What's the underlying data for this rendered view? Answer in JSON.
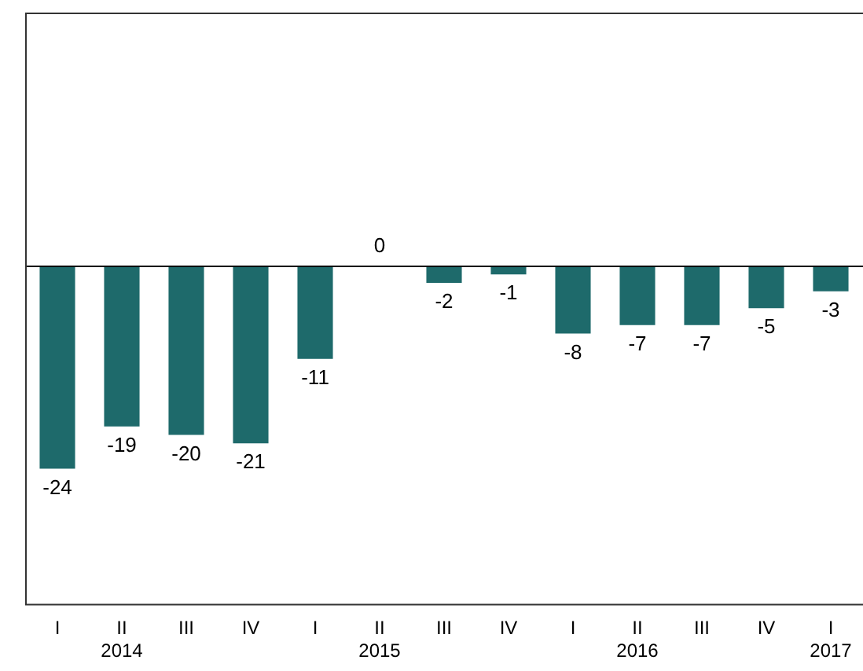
{
  "chart_data": {
    "type": "bar",
    "categories": [
      "I",
      "II\n2014",
      "III",
      "IV",
      "I",
      "II\n2015",
      "III",
      "IV",
      "I",
      "II\n2016",
      "III",
      "IV",
      "I\n2017"
    ],
    "values": [
      -24,
      -19,
      -20,
      -21,
      -11,
      0,
      -2,
      -1,
      -8,
      -7,
      -7,
      -5,
      -3
    ],
    "color": "#1e6a6b",
    "data_labels": true,
    "ylim": [
      -40,
      30
    ],
    "grid": false,
    "legend": false
  }
}
